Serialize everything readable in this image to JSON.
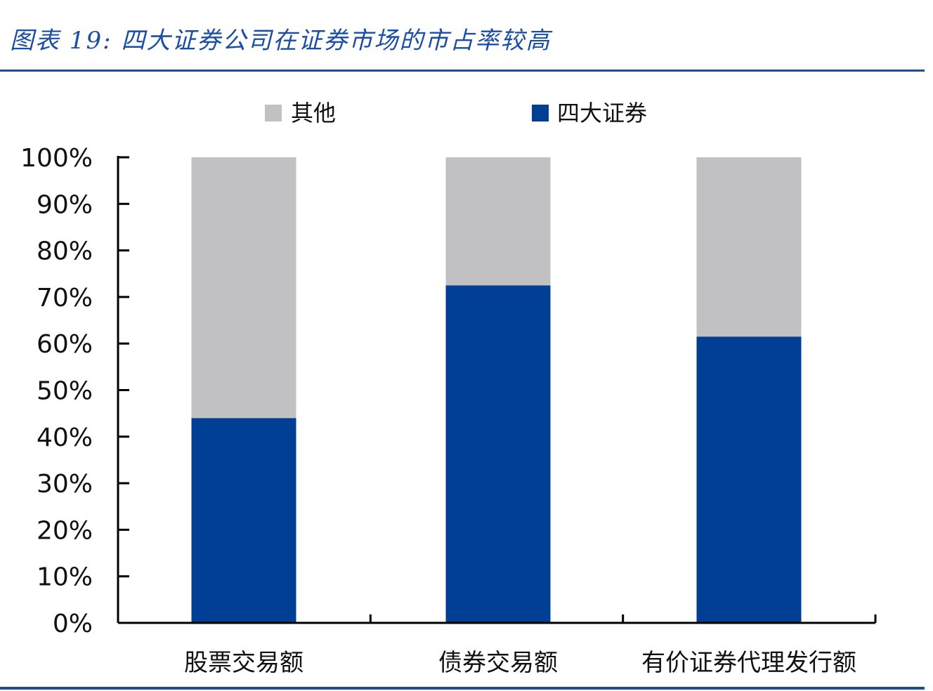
{
  "title": "图表 19: 四大证券公司在证券市场的市占率较高",
  "colors": {
    "other": "#c1c1c3",
    "big_four": "#003f94",
    "axis": "#000000"
  },
  "chart_data": {
    "type": "bar",
    "stacked": true,
    "categories": [
      "股票交易额",
      "债券交易额",
      "有价证券代理发行额"
    ],
    "series": [
      {
        "name": "四大证券",
        "values": [
          44,
          72.5,
          61.5
        ]
      },
      {
        "name": "其他",
        "values": [
          56,
          27.5,
          38.5
        ]
      }
    ],
    "y_ticks": [
      "0%",
      "10%",
      "20%",
      "30%",
      "40%",
      "50%",
      "60%",
      "70%",
      "80%",
      "90%",
      "100%"
    ],
    "ylim": [
      0,
      100
    ],
    "legend_position": "top",
    "grid": false
  }
}
